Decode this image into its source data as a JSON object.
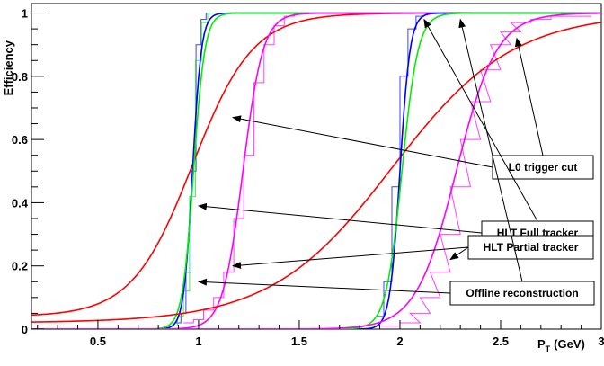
{
  "chart_data": {
    "type": "line",
    "xlabel": "P",
    "xlabel_sub": "T",
    "xlabel_unit": "(GeV)",
    "ylabel": "Efficiency",
    "xlim": [
      0.17,
      3.0
    ],
    "ylim": [
      0,
      1.03
    ],
    "x_ticks": [
      0.5,
      1,
      1.5,
      2,
      2.5,
      3
    ],
    "x_tick_labels": [
      "0.5",
      "1",
      "1.5",
      "2",
      "2.5",
      "3"
    ],
    "y_ticks": [
      0,
      0.2,
      0.4,
      0.6,
      0.8,
      1
    ],
    "y_tick_labels": [
      "0",
      "0.2",
      "0.4",
      "0.6",
      "0.8",
      "1"
    ],
    "grid": false,
    "colors": {
      "l0": "#ff0000",
      "hlt_full": "#0000ff",
      "hlt_partial": "#00ee00",
      "offline": "#ff00ff"
    },
    "curve_groups": [
      {
        "group": "threshold-1GeV",
        "curves": [
          {
            "series": "l0",
            "x0": 0.97,
            "width": 0.15,
            "floor": 0.04
          },
          {
            "series": "hlt_full",
            "x0": 0.97,
            "width": 0.022
          },
          {
            "series": "hlt_partial",
            "x0": 0.975,
            "width": 0.028
          },
          {
            "series": "offline",
            "x0": 1.22,
            "width": 0.05
          }
        ],
        "histograms": [
          {
            "series": "hlt_full",
            "x": [
              0.9,
              0.925,
              0.95,
              0.975,
              1.0,
              1.025,
              1.05
            ],
            "y": [
              0.02,
              0.05,
              0.18,
              0.5,
              0.9,
              0.98,
              1.0
            ]
          },
          {
            "series": "hlt_partial",
            "x": [
              0.88,
              0.91,
              0.94,
              0.97,
              1.0,
              1.03,
              1.06
            ],
            "y": [
              0.01,
              0.04,
              0.12,
              0.42,
              0.85,
              0.97,
              1.0
            ]
          },
          {
            "series": "offline",
            "x": [
              0.95,
              1.0,
              1.05,
              1.1,
              1.15,
              1.2,
              1.25,
              1.3,
              1.35,
              1.4,
              1.45,
              1.5
            ],
            "y": [
              0.02,
              0.03,
              0.06,
              0.1,
              0.18,
              0.35,
              0.55,
              0.78,
              0.9,
              0.96,
              0.99,
              1.0
            ]
          }
        ]
      },
      {
        "group": "threshold-2GeV",
        "curves": [
          {
            "series": "l0",
            "x0": 1.96,
            "width": 0.3,
            "floor": 0.02
          },
          {
            "series": "hlt_full",
            "x0": 2.0,
            "width": 0.025
          },
          {
            "series": "hlt_partial",
            "x0": 2.01,
            "width": 0.04
          },
          {
            "series": "offline",
            "x0": 2.28,
            "width": 0.1
          }
        ],
        "histograms": [
          {
            "series": "hlt_full",
            "x": [
              1.9,
              1.94,
              1.98,
              2.02,
              2.06,
              2.1
            ],
            "y": [
              0.04,
              0.15,
              0.45,
              0.8,
              0.95,
              0.99
            ]
          },
          {
            "series": "offline",
            "x": [
              1.95,
              2.05,
              2.1,
              2.15,
              2.2,
              2.25,
              2.3,
              2.35,
              2.4,
              2.45,
              2.5,
              2.55,
              2.6,
              2.7,
              2.8,
              2.9
            ],
            "y": [
              0.01,
              0.02,
              0.05,
              0.1,
              0.18,
              0.3,
              0.45,
              0.6,
              0.72,
              0.82,
              0.9,
              0.94,
              0.97,
              0.98,
              0.99,
              0.99
            ]
          }
        ]
      }
    ],
    "annotations": [
      {
        "label": "L0 trigger cut",
        "target": [
          1.17,
          0.67
        ],
        "arrow_to": [
          2.58,
          0.92
        ]
      },
      {
        "label": "HLT Full tracker",
        "target": [
          1.0,
          0.39
        ],
        "arrow_to": [
          2.12,
          0.98
        ]
      },
      {
        "label": "HLT Partial tracker",
        "target": [
          1.17,
          0.2
        ],
        "arrow_to": [
          2.25,
          0.22
        ]
      },
      {
        "label": "Offline reconstruction",
        "target": [
          1.0,
          0.15
        ],
        "arrow_to": [
          2.3,
          0.98
        ]
      }
    ]
  }
}
